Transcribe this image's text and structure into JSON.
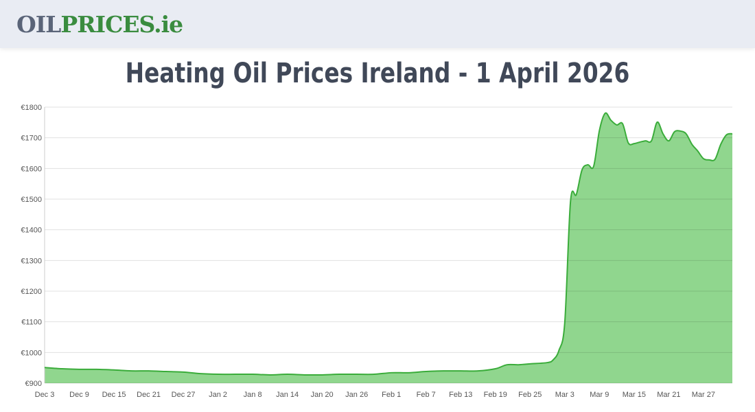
{
  "header": {
    "logo_part1": "OIL",
    "logo_part2": "PRICES.ie"
  },
  "title": "Heating Oil Prices Ireland - 1 April 2026",
  "chart_data": {
    "type": "area",
    "title": "Heating Oil Prices Ireland - 1 April 2026",
    "xlabel": "",
    "ylabel": "",
    "ylim": [
      900,
      1800
    ],
    "yticks": [
      "€900",
      "€1000",
      "€1100",
      "€1200",
      "€1300",
      "€1400",
      "€1500",
      "€1600",
      "€1700",
      "€1800"
    ],
    "xticks": [
      "Dec 3",
      "Dec 9",
      "Dec 15",
      "Dec 21",
      "Dec 27",
      "Jan 2",
      "Jan 8",
      "Jan 14",
      "Jan 20",
      "Jan 26",
      "Feb 1",
      "Feb 7",
      "Feb 13",
      "Feb 19",
      "Feb 25",
      "Mar 3",
      "Mar 9",
      "Mar 15",
      "Mar 21",
      "Mar 27"
    ],
    "grid": true,
    "colors": {
      "line": "#3aac3a",
      "fill": "#90d68e"
    },
    "x": [
      "2025-12-03",
      "2025-12-06",
      "2025-12-09",
      "2025-12-12",
      "2025-12-15",
      "2025-12-18",
      "2025-12-21",
      "2025-12-24",
      "2025-12-27",
      "2025-12-30",
      "2026-01-02",
      "2026-01-05",
      "2026-01-08",
      "2026-01-11",
      "2026-01-14",
      "2026-01-17",
      "2026-01-20",
      "2026-01-23",
      "2026-01-26",
      "2026-01-29",
      "2026-02-01",
      "2026-02-04",
      "2026-02-07",
      "2026-02-10",
      "2026-02-13",
      "2026-02-16",
      "2026-02-19",
      "2026-02-21",
      "2026-02-23",
      "2026-02-25",
      "2026-02-28",
      "2026-03-01",
      "2026-03-02",
      "2026-03-03",
      "2026-03-04",
      "2026-03-05",
      "2026-03-06",
      "2026-03-07",
      "2026-03-08",
      "2026-03-09",
      "2026-03-10",
      "2026-03-11",
      "2026-03-12",
      "2026-03-13",
      "2026-03-14",
      "2026-03-15",
      "2026-03-16",
      "2026-03-17",
      "2026-03-18",
      "2026-03-19",
      "2026-03-20",
      "2026-03-21",
      "2026-03-22",
      "2026-03-23",
      "2026-03-24",
      "2026-03-25",
      "2026-03-26",
      "2026-03-27",
      "2026-03-28",
      "2026-03-29",
      "2026-03-30",
      "2026-03-31",
      "2026-04-01"
    ],
    "values": [
      951,
      947,
      945,
      945,
      943,
      940,
      940,
      938,
      936,
      931,
      929,
      929,
      929,
      927,
      929,
      927,
      927,
      929,
      929,
      929,
      934,
      934,
      938,
      940,
      940,
      940,
      947,
      960,
      960,
      963,
      967,
      976,
      1007,
      1097,
      1493,
      1515,
      1596,
      1612,
      1607,
      1724,
      1780,
      1757,
      1742,
      1746,
      1683,
      1681,
      1686,
      1690,
      1690,
      1751,
      1713,
      1690,
      1720,
      1722,
      1713,
      1679,
      1657,
      1632,
      1628,
      1630,
      1679,
      1710,
      1713
    ]
  }
}
